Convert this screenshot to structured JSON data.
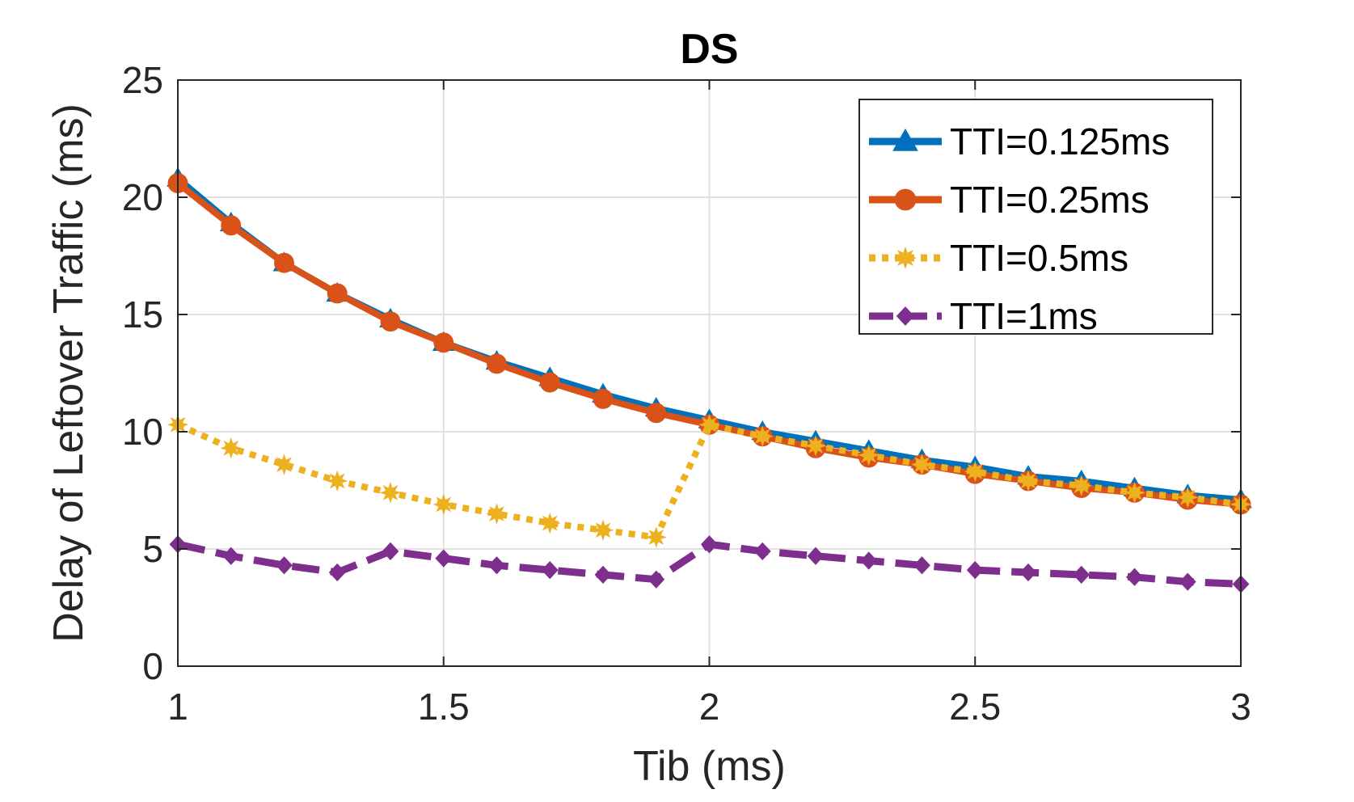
{
  "chart_data": {
    "type": "line",
    "title": "DS",
    "xlabel": "Tib (ms)",
    "ylabel": "Delay of Leftover Traffic (ms)",
    "xlim": [
      1,
      3
    ],
    "ylim": [
      0,
      25
    ],
    "xticks": [
      1,
      1.5,
      2,
      2.5,
      3
    ],
    "xtick_labels": [
      "1",
      "1.5",
      "2",
      "2.5",
      "3"
    ],
    "yticks": [
      0,
      5,
      10,
      15,
      20,
      25
    ],
    "ytick_labels": [
      "0",
      "5",
      "10",
      "15",
      "20",
      "25"
    ],
    "grid": true,
    "legend_position": "top-right",
    "x": [
      1.0,
      1.1,
      1.2,
      1.3,
      1.4,
      1.5,
      1.6,
      1.7,
      1.8,
      1.9,
      2.0,
      2.1,
      2.2,
      2.3,
      2.4,
      2.5,
      2.6,
      2.7,
      2.8,
      2.9,
      3.0
    ],
    "series": [
      {
        "name": "TTI=0.125ms",
        "color": "#0072BD",
        "marker": "triangle",
        "line_style": "solid",
        "values": [
          20.8,
          18.9,
          17.2,
          15.9,
          14.8,
          13.8,
          13.0,
          12.3,
          11.6,
          11.0,
          10.5,
          10.0,
          9.6,
          9.2,
          8.8,
          8.5,
          8.1,
          7.9,
          7.6,
          7.3,
          7.1
        ]
      },
      {
        "name": "TTI=0.25ms",
        "color": "#D95319",
        "marker": "circle",
        "line_style": "solid",
        "values": [
          20.6,
          18.8,
          17.2,
          15.9,
          14.7,
          13.8,
          12.9,
          12.1,
          11.4,
          10.8,
          10.3,
          9.8,
          9.3,
          8.9,
          8.6,
          8.2,
          7.9,
          7.6,
          7.4,
          7.1,
          6.9
        ]
      },
      {
        "name": "TTI=0.5ms",
        "color": "#EDB120",
        "marker": "star",
        "line_style": "dotted",
        "values": [
          10.3,
          9.3,
          8.6,
          7.9,
          7.4,
          6.9,
          6.5,
          6.1,
          5.8,
          5.5,
          10.3,
          9.8,
          9.4,
          9.0,
          8.6,
          8.3,
          7.9,
          7.7,
          7.4,
          7.2,
          6.9
        ]
      },
      {
        "name": "TTI=1ms",
        "color": "#7E2F8E",
        "marker": "diamond",
        "line_style": "dashed",
        "values": [
          5.2,
          4.7,
          4.3,
          4.0,
          4.9,
          4.6,
          4.3,
          4.1,
          3.9,
          3.7,
          5.2,
          4.9,
          4.7,
          4.5,
          4.3,
          4.1,
          4.0,
          3.9,
          3.8,
          3.6,
          3.5
        ]
      }
    ]
  }
}
